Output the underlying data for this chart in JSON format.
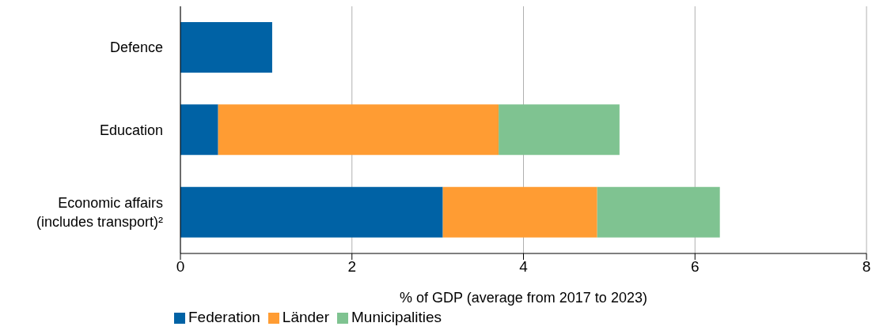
{
  "chart_data": {
    "type": "bar",
    "orientation": "horizontal",
    "stacked": true,
    "xlabel": "% of GDP (average from 2017 to 2023)",
    "categories": [
      "Defence",
      "Education",
      "Economic affairs\n(includes transport)²"
    ],
    "series": [
      {
        "name": "Federation",
        "color": "#0062a5",
        "values": [
          1.07,
          0.44,
          3.06
        ]
      },
      {
        "name": "Länder",
        "color": "#ff9c33",
        "values": [
          null,
          3.27,
          1.8
        ]
      },
      {
        "name": "Municipalities",
        "color": "#7fc391",
        "values": [
          null,
          1.41,
          1.43
        ]
      }
    ],
    "xlim": [
      0,
      8
    ],
    "xticks": [
      0,
      2,
      4,
      6,
      8
    ],
    "grid": "x",
    "legend": "bottom left"
  }
}
